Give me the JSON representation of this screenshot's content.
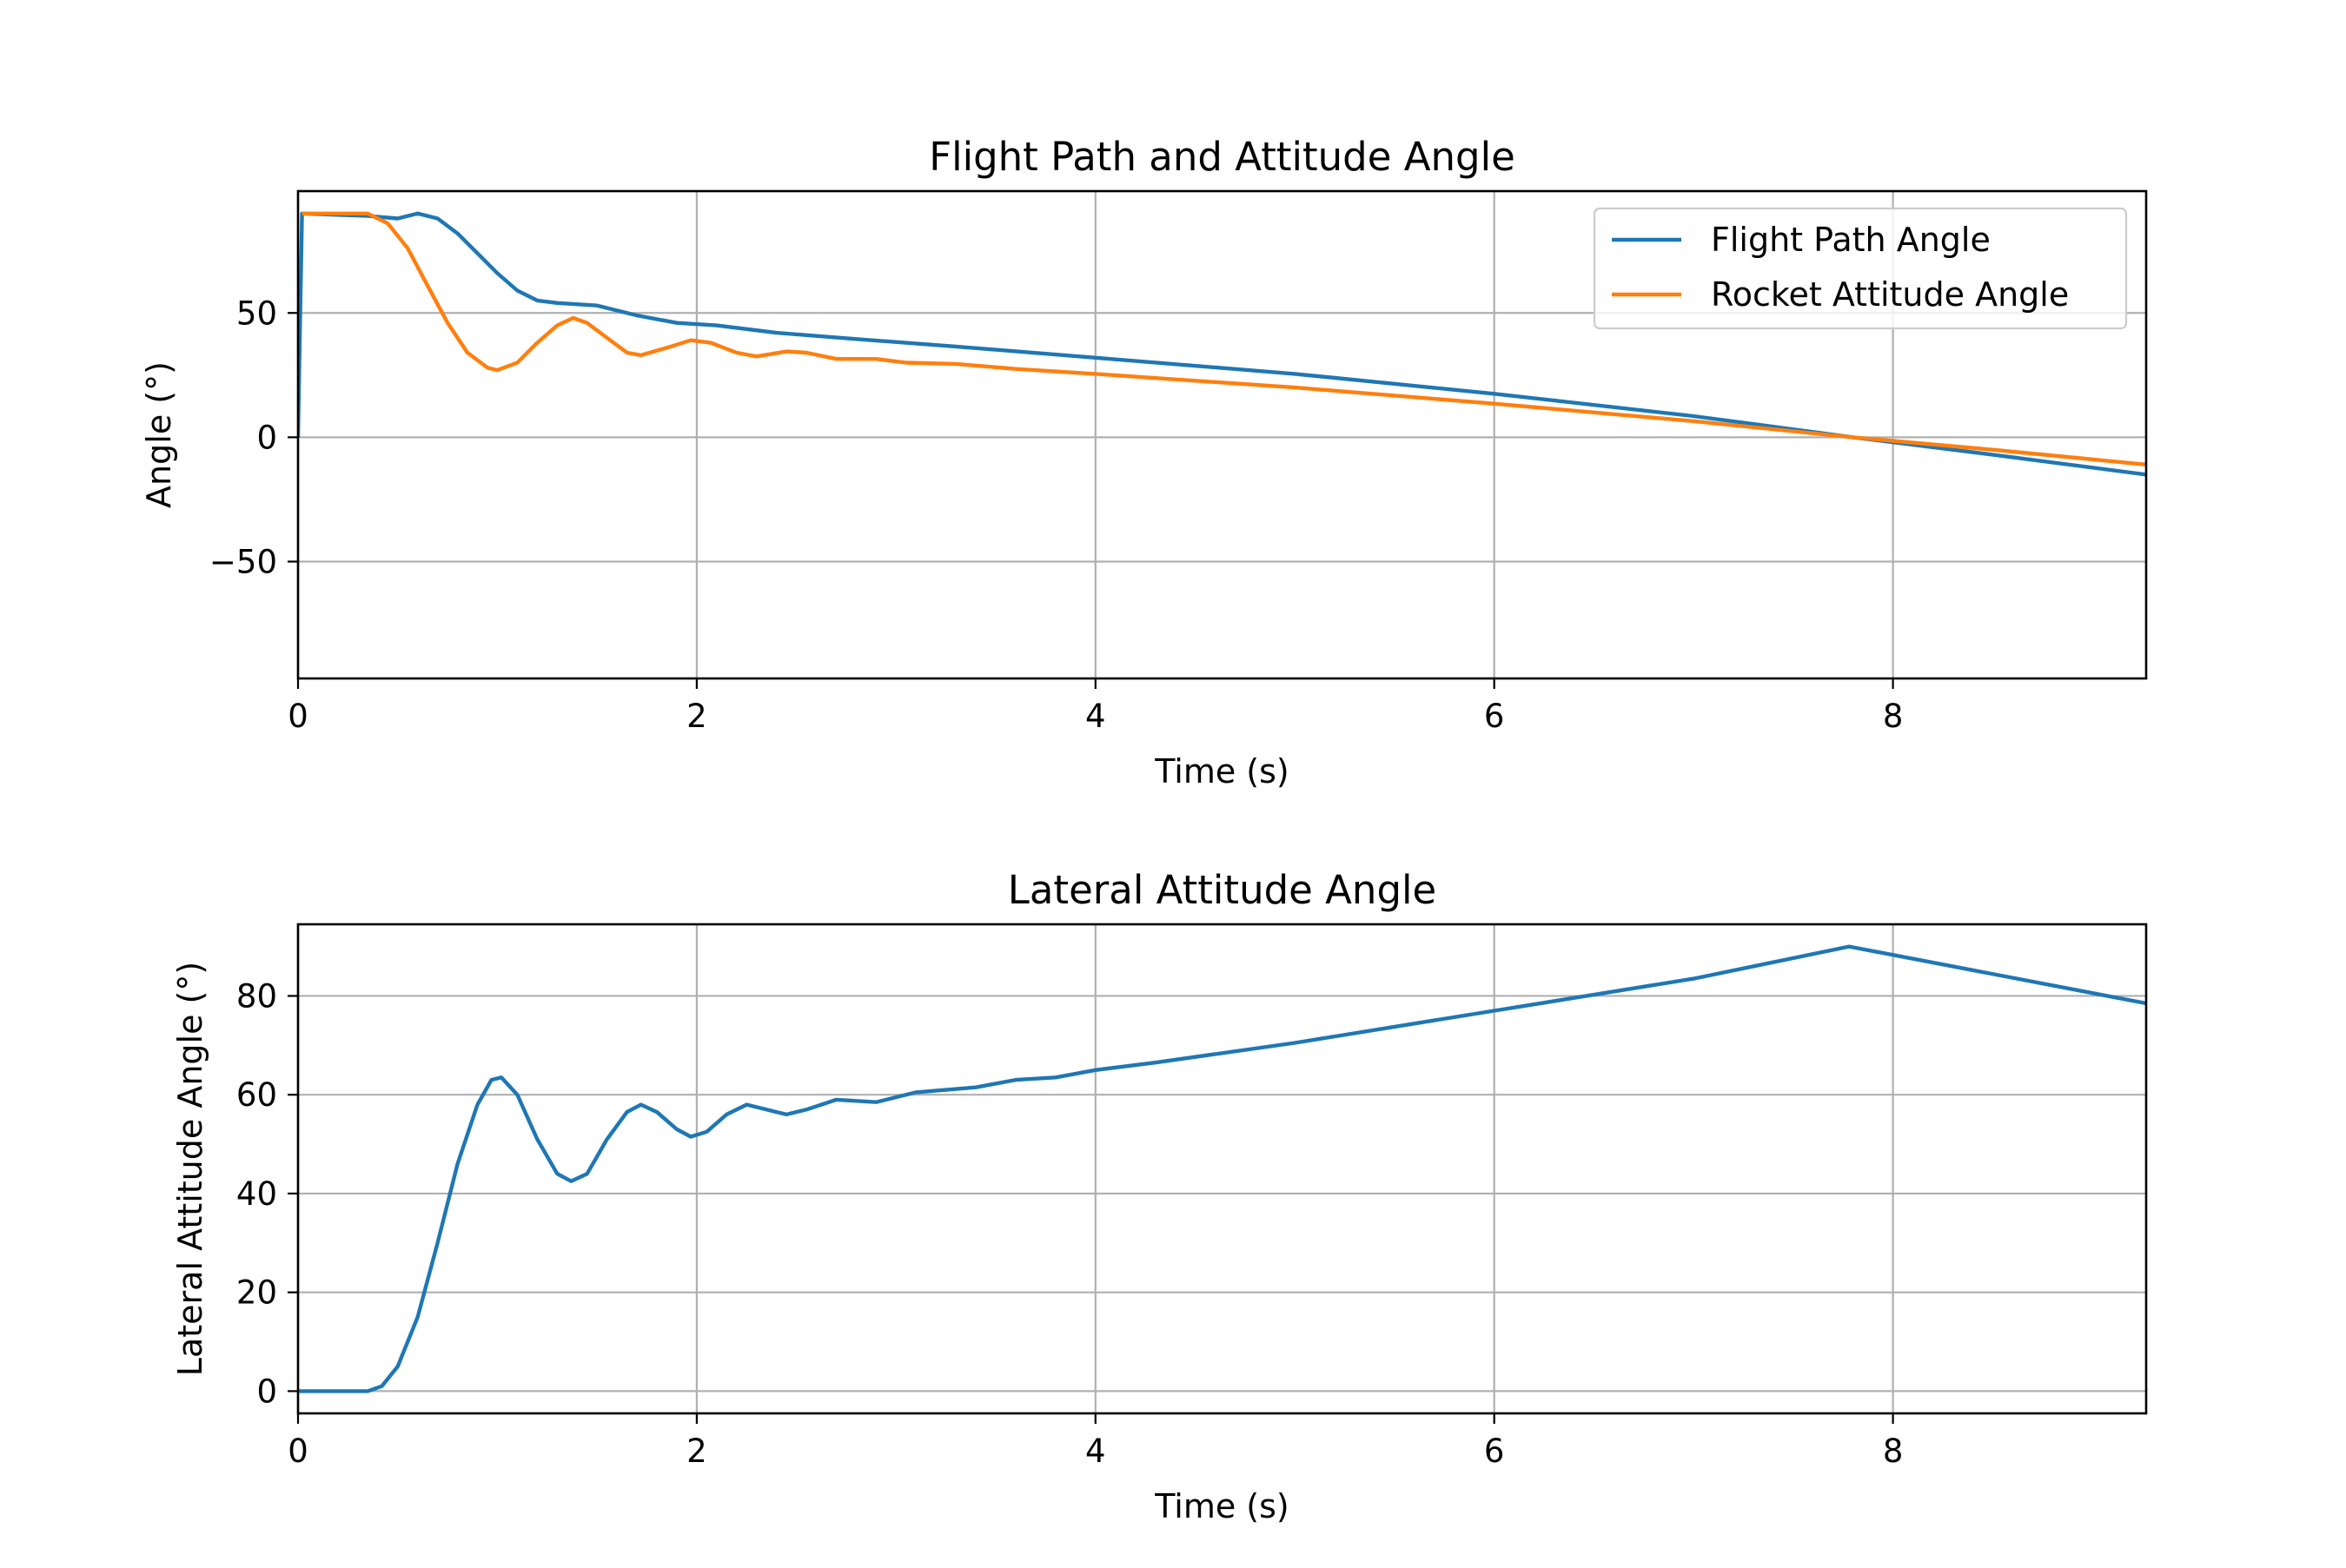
{
  "chart_data": [
    {
      "type": "line",
      "title": "Flight Path and Attitude Angle",
      "xlabel": "Time (s)",
      "ylabel": "Angle (°)",
      "xlim": [
        0,
        9.27
      ],
      "ylim": [
        -97,
        99
      ],
      "xticks": [
        0,
        2,
        4,
        6,
        8
      ],
      "yticks": [
        -50,
        0,
        50
      ],
      "ytick_labels": [
        "−50",
        "0",
        "50"
      ],
      "grid": true,
      "legend": "top-right",
      "series": [
        {
          "name": "Flight Path Angle",
          "color": "#1f77b4",
          "points": [
            [
              0,
              0
            ],
            [
              0.02,
              90
            ],
            [
              0.35,
              89
            ],
            [
              0.5,
              88
            ],
            [
              0.6,
              90
            ],
            [
              0.7,
              88
            ],
            [
              0.8,
              82
            ],
            [
              0.9,
              74
            ],
            [
              1.0,
              66
            ],
            [
              1.1,
              59
            ],
            [
              1.2,
              55
            ],
            [
              1.3,
              54
            ],
            [
              1.5,
              53
            ],
            [
              1.7,
              49
            ],
            [
              1.9,
              46
            ],
            [
              2.1,
              45
            ],
            [
              2.4,
              42
            ],
            [
              2.8,
              39.5
            ],
            [
              3.3,
              36.5
            ],
            [
              4.0,
              32
            ],
            [
              5.0,
              25.5
            ],
            [
              6.0,
              17.5
            ],
            [
              7.0,
              8.5
            ],
            [
              7.8,
              0
            ],
            [
              8.5,
              -7
            ],
            [
              9.27,
              -15
            ]
          ]
        },
        {
          "name": "Rocket Attitude Angle",
          "color": "#ff7f0e",
          "points": [
            [
              0.02,
              90
            ],
            [
              0.35,
              90
            ],
            [
              0.45,
              86
            ],
            [
              0.55,
              76
            ],
            [
              0.65,
              61
            ],
            [
              0.75,
              46
            ],
            [
              0.85,
              34
            ],
            [
              0.95,
              28
            ],
            [
              1.0,
              27
            ],
            [
              1.1,
              30
            ],
            [
              1.2,
              38
            ],
            [
              1.3,
              45
            ],
            [
              1.38,
              48
            ],
            [
              1.45,
              46
            ],
            [
              1.55,
              40
            ],
            [
              1.65,
              34
            ],
            [
              1.72,
              33
            ],
            [
              1.85,
              36
            ],
            [
              1.97,
              39
            ],
            [
              2.07,
              38
            ],
            [
              2.2,
              34
            ],
            [
              2.3,
              32.5
            ],
            [
              2.45,
              34.5
            ],
            [
              2.55,
              34
            ],
            [
              2.7,
              31.5
            ],
            [
              2.9,
              31.5
            ],
            [
              3.05,
              30
            ],
            [
              3.3,
              29.5
            ],
            [
              3.6,
              27.5
            ],
            [
              4.0,
              25.5
            ],
            [
              5.0,
              20
            ],
            [
              6.0,
              13.5
            ],
            [
              7.0,
              6.5
            ],
            [
              7.8,
              0
            ],
            [
              8.5,
              -5
            ],
            [
              9.27,
              -11
            ]
          ]
        }
      ]
    },
    {
      "type": "line",
      "title": "Lateral Attitude Angle",
      "xlabel": "Time (s)",
      "ylabel": "Lateral Attitude Angle (°)",
      "xlim": [
        0,
        9.27
      ],
      "ylim": [
        -4.5,
        94.5
      ],
      "xticks": [
        0,
        2,
        4,
        6,
        8
      ],
      "yticks": [
        0,
        20,
        40,
        60,
        80
      ],
      "ytick_labels": [
        "0",
        "20",
        "40",
        "60",
        "80"
      ],
      "grid": true,
      "series": [
        {
          "color": "#1f77b4",
          "points": [
            [
              0,
              0
            ],
            [
              0.35,
              0
            ],
            [
              0.42,
              1
            ],
            [
              0.5,
              5
            ],
            [
              0.6,
              15
            ],
            [
              0.7,
              30
            ],
            [
              0.8,
              46
            ],
            [
              0.9,
              58
            ],
            [
              0.97,
              63
            ],
            [
              1.02,
              63.5
            ],
            [
              1.1,
              60
            ],
            [
              1.2,
              51
            ],
            [
              1.3,
              44
            ],
            [
              1.37,
              42.5
            ],
            [
              1.45,
              44
            ],
            [
              1.55,
              51
            ],
            [
              1.65,
              56.5
            ],
            [
              1.72,
              58
            ],
            [
              1.8,
              56.5
            ],
            [
              1.9,
              53
            ],
            [
              1.97,
              51.5
            ],
            [
              2.05,
              52.5
            ],
            [
              2.15,
              56
            ],
            [
              2.25,
              58
            ],
            [
              2.35,
              57
            ],
            [
              2.45,
              56
            ],
            [
              2.55,
              57
            ],
            [
              2.7,
              59
            ],
            [
              2.9,
              58.5
            ],
            [
              3.1,
              60.5
            ],
            [
              3.4,
              61.5
            ],
            [
              3.6,
              63
            ],
            [
              3.8,
              63.5
            ],
            [
              4.0,
              65
            ],
            [
              4.3,
              66.5
            ],
            [
              5.0,
              70.5
            ],
            [
              6.0,
              77
            ],
            [
              7.0,
              83.5
            ],
            [
              7.78,
              90
            ],
            [
              9.27,
              78.5
            ]
          ]
        }
      ]
    }
  ]
}
